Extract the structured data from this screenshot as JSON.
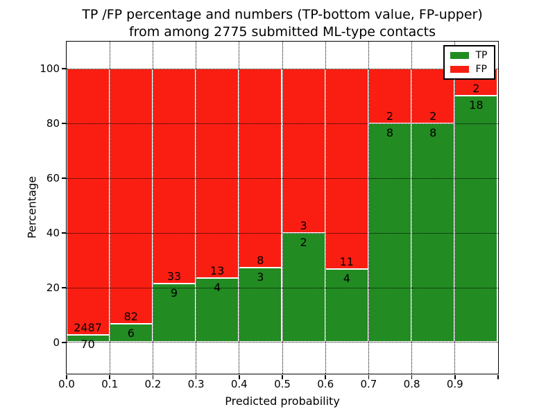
{
  "title": {
    "line1": "TP /FP percentage and numbers (TP-bottom value, FP-upper)",
    "line2": "from among 2775 submitted ML-type contacts"
  },
  "chart_data": {
    "type": "bar",
    "stacked": true,
    "title": "TP /FP percentage and numbers (TP-bottom value, FP-upper) from among 2775 submitted ML-type contacts",
    "xlabel": "Predicted probability",
    "ylabel": "Percentage",
    "total_contacts": 2775,
    "xlim": [
      0.0,
      1.0
    ],
    "ylim": [
      -11.4,
      109.9
    ],
    "grid": {
      "style": "dotted",
      "color": "#000000",
      "on": true
    },
    "x_ticks": [
      {
        "value": 0.0,
        "label": "0.0"
      },
      {
        "value": 0.1,
        "label": "0.1"
      },
      {
        "value": 0.2,
        "label": "0.2"
      },
      {
        "value": 0.3,
        "label": "0.3"
      },
      {
        "value": 0.4,
        "label": "0.4"
      },
      {
        "value": 0.5,
        "label": "0.5"
      },
      {
        "value": 0.6,
        "label": "0.6"
      },
      {
        "value": 0.7,
        "label": "0.7"
      },
      {
        "value": 0.8,
        "label": "0.8"
      },
      {
        "value": 0.9,
        "label": "0.9"
      },
      {
        "value": 1.0,
        "label": ""
      }
    ],
    "y_ticks": [
      {
        "value": 0,
        "label": "0"
      },
      {
        "value": 20,
        "label": "20"
      },
      {
        "value": 40,
        "label": "40"
      },
      {
        "value": 60,
        "label": "60"
      },
      {
        "value": 80,
        "label": "80"
      },
      {
        "value": 100,
        "label": "100"
      }
    ],
    "legend": {
      "position": "upper-right",
      "entries": [
        {
          "label": "TP",
          "color": "#228b22"
        },
        {
          "label": "FP",
          "color": "#fa1e12"
        }
      ]
    },
    "bins": [
      {
        "x_range": [
          0.0,
          0.1
        ],
        "tp_count": 70,
        "fp_count": 2487,
        "tp_pct": 2.74,
        "fp_pct": 97.26
      },
      {
        "x_range": [
          0.1,
          0.2
        ],
        "tp_count": 6,
        "fp_count": 82,
        "tp_pct": 6.82,
        "fp_pct": 93.18
      },
      {
        "x_range": [
          0.2,
          0.3
        ],
        "tp_count": 9,
        "fp_count": 33,
        "tp_pct": 21.43,
        "fp_pct": 78.57
      },
      {
        "x_range": [
          0.3,
          0.4
        ],
        "tp_count": 4,
        "fp_count": 13,
        "tp_pct": 23.53,
        "fp_pct": 76.47
      },
      {
        "x_range": [
          0.4,
          0.5
        ],
        "tp_count": 3,
        "fp_count": 8,
        "tp_pct": 27.27,
        "fp_pct": 72.73
      },
      {
        "x_range": [
          0.5,
          0.6
        ],
        "tp_count": 2,
        "fp_count": 3,
        "tp_pct": 40.0,
        "fp_pct": 60.0
      },
      {
        "x_range": [
          0.6,
          0.7
        ],
        "tp_count": 4,
        "fp_count": 11,
        "tp_pct": 26.67,
        "fp_pct": 73.33
      },
      {
        "x_range": [
          0.7,
          0.8
        ],
        "tp_count": 8,
        "fp_count": 2,
        "tp_pct": 80.0,
        "fp_pct": 20.0
      },
      {
        "x_range": [
          0.8,
          0.9
        ],
        "tp_count": 8,
        "fp_count": 2,
        "tp_pct": 80.0,
        "fp_pct": 20.0
      },
      {
        "x_range": [
          0.9,
          1.0
        ],
        "tp_count": 18,
        "fp_count": 2,
        "tp_pct": 90.0,
        "fp_pct": 10.0
      }
    ]
  },
  "colors": {
    "tp": "#228b22",
    "fp": "#fa1e12",
    "bar_edge": "#ffffff",
    "grid": "#000000",
    "frame": "#000000",
    "background": "#ffffff"
  }
}
